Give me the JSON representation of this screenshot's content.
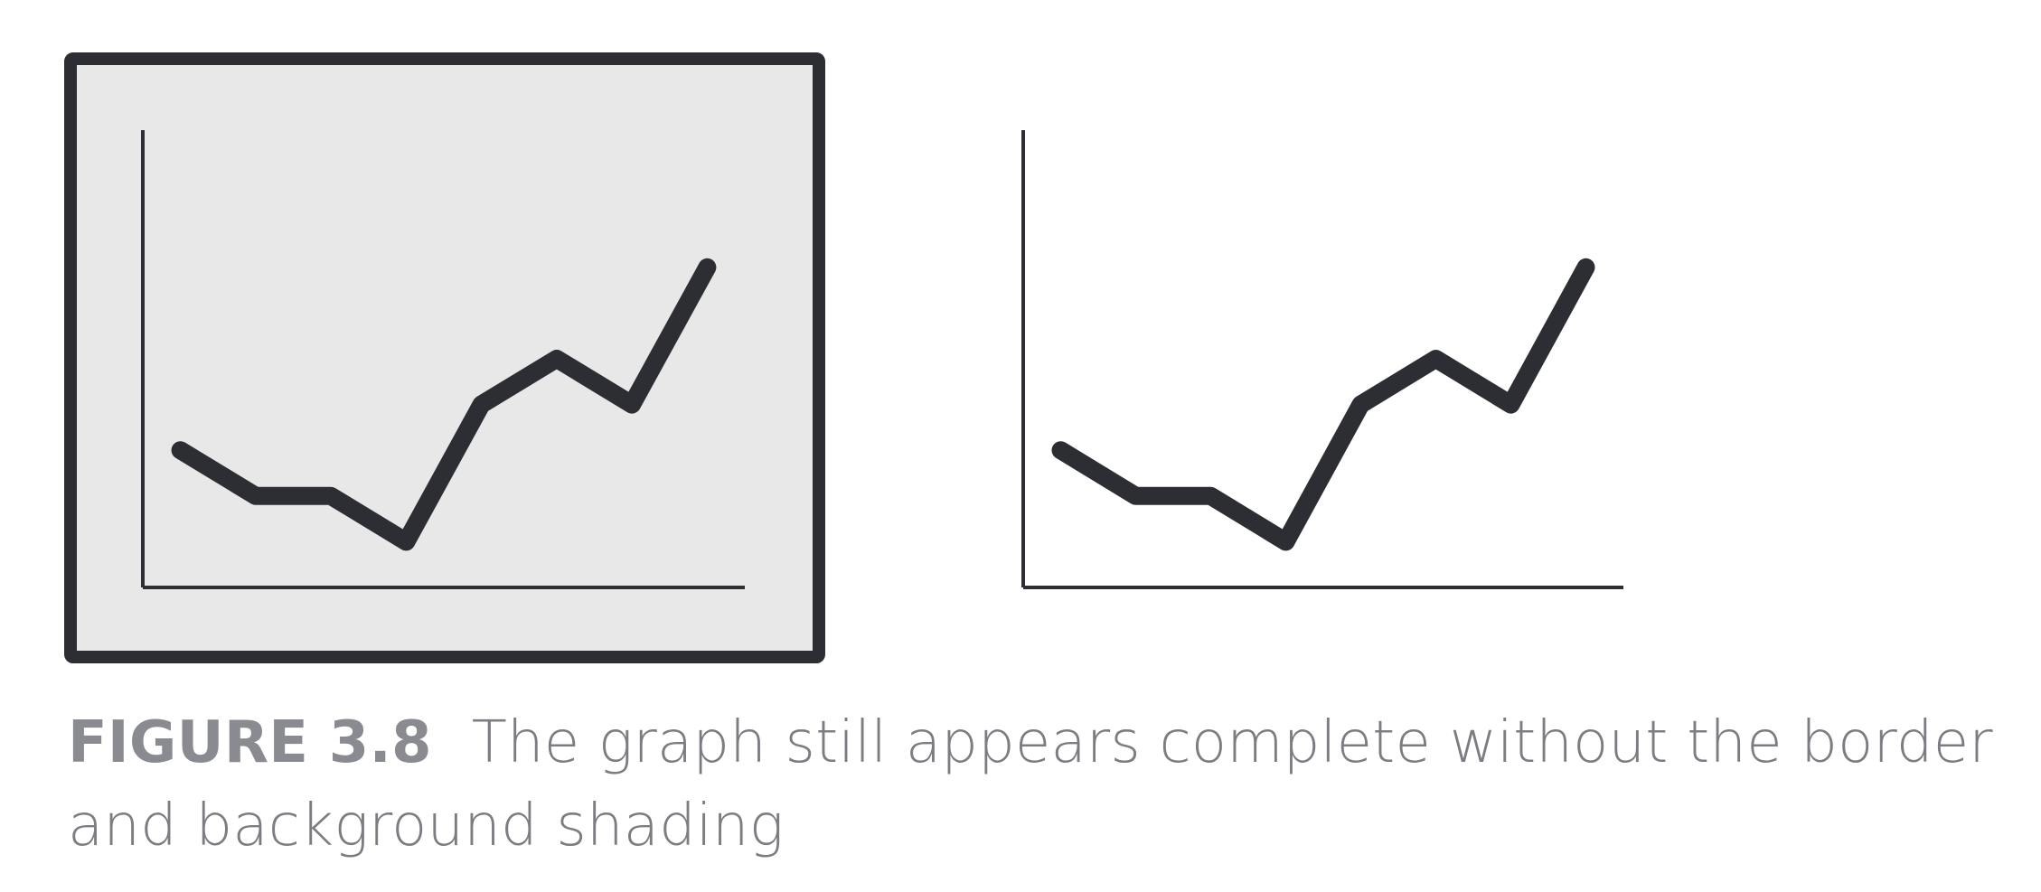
{
  "caption": {
    "label": "FIGURE 3.8",
    "text": "The graph still appears complete without the border and background shading"
  },
  "colors": {
    "line": "#2c2e33",
    "frame_fill": "#e8e8e8",
    "frame_stroke": "#2c2e33",
    "caption": "#7c7d82"
  },
  "chart_data": [
    {
      "type": "line",
      "border": true,
      "background_shading": true,
      "grid": false,
      "title": "",
      "xlabel": "",
      "ylabel": "",
      "xlim": [
        0,
        8
      ],
      "ylim": [
        0,
        10
      ],
      "series": [
        {
          "x": [
            0.5,
            1.5,
            2.5,
            3.5,
            4.5,
            5.5,
            6.5,
            7.5
          ],
          "values": [
            3.0,
            2.0,
            2.0,
            1.0,
            4.0,
            5.0,
            4.0,
            7.0
          ]
        }
      ]
    },
    {
      "type": "line",
      "border": false,
      "background_shading": false,
      "grid": false,
      "title": "",
      "xlabel": "",
      "ylabel": "",
      "xlim": [
        0,
        8
      ],
      "ylim": [
        0,
        10
      ],
      "series": [
        {
          "x": [
            0.5,
            1.5,
            2.5,
            3.5,
            4.5,
            5.5,
            6.5,
            7.5
          ],
          "values": [
            3.0,
            2.0,
            2.0,
            1.0,
            4.0,
            5.0,
            4.0,
            7.0
          ]
        }
      ]
    }
  ]
}
